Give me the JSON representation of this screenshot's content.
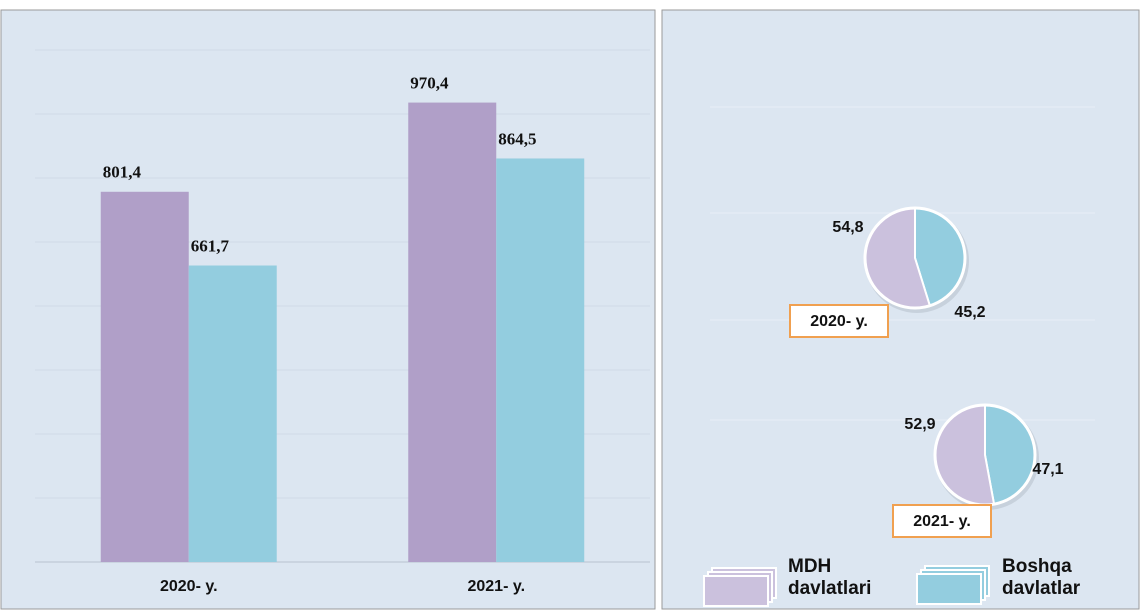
{
  "chart_data": [
    {
      "type": "bar",
      "categories": [
        "2020- y.",
        "2021- y."
      ],
      "series": [
        {
          "name": "MDH davlatlari",
          "color": "#b09fc8",
          "values": [
            801.4,
            970.4
          ],
          "value_labels": [
            "801,4",
            "970,4"
          ]
        },
        {
          "name": "Boshqa davlatlar",
          "color": "#93cddf",
          "values": [
            661.7,
            864.5
          ],
          "value_labels": [
            "661,7",
            "864,5"
          ]
        }
      ],
      "ylim": [
        100,
        1070
      ]
    },
    {
      "type": "pie",
      "title": "2020- y.",
      "categories": [
        "MDH davlatlari",
        "Boshqa davlatlar"
      ],
      "values": [
        54.8,
        45.2
      ],
      "value_labels": [
        "54,8",
        "45,2"
      ],
      "colors": [
        "#cbc1dd",
        "#93cddf"
      ]
    },
    {
      "type": "pie",
      "title": "2021- y.",
      "categories": [
        "MDH davlatlari",
        "Boshqa davlatlar"
      ],
      "values": [
        52.9,
        47.1
      ],
      "value_labels": [
        "52,9",
        "47,1"
      ],
      "colors": [
        "#cbc1dd",
        "#93cddf"
      ]
    }
  ]
}
